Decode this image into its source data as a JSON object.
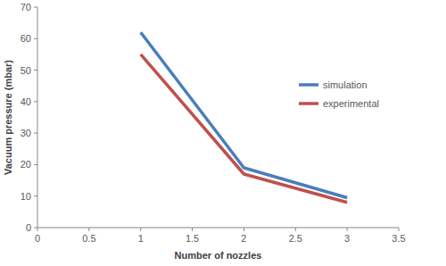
{
  "chart_data": {
    "type": "line",
    "x_label": "Number of nozzles",
    "y_label": "Vacuum pressure (mbar)",
    "x": [
      1,
      2,
      3
    ],
    "series": [
      {
        "name": "simulation",
        "color": "#4a7ebb",
        "values": [
          62,
          19,
          9.5
        ]
      },
      {
        "name": "experimental",
        "color": "#c0504d",
        "values": [
          55,
          17,
          8
        ]
      }
    ],
    "xlim": [
      0,
      3.5
    ],
    "xticks": [
      0,
      0.5,
      1,
      1.5,
      2,
      2.5,
      3,
      3.5
    ],
    "ylim": [
      0,
      70
    ],
    "yticks": [
      0,
      10,
      20,
      30,
      40,
      50,
      60,
      70
    ],
    "grid": false,
    "legend": "right"
  }
}
